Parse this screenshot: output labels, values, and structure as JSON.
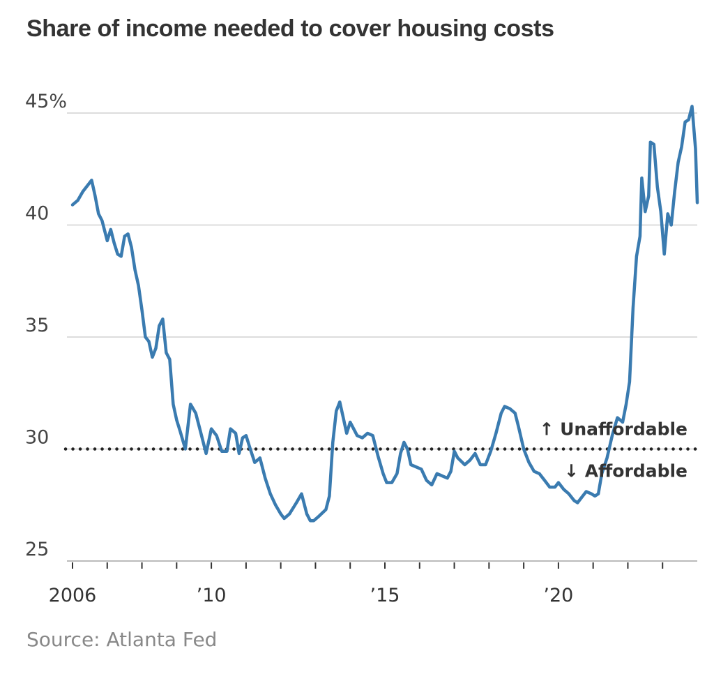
{
  "chart_data": {
    "type": "line",
    "title": "Share of income needed to cover housing costs",
    "source": "Source: Atlanta Fed",
    "xlabel": "",
    "ylabel": "",
    "ylim": [
      25,
      45
    ],
    "xlim": [
      2006,
      2024
    ],
    "y_ticks": [
      {
        "value": 45,
        "label": "45%"
      },
      {
        "value": 40,
        "label": "40"
      },
      {
        "value": 35,
        "label": "35"
      },
      {
        "value": 30,
        "label": "30"
      },
      {
        "value": 25,
        "label": "25"
      }
    ],
    "x_ticks": [
      {
        "value": 2006,
        "label": "2006"
      },
      {
        "value": 2010,
        "label": "’10"
      },
      {
        "value": 2015,
        "label": "’15"
      },
      {
        "value": 2020,
        "label": "’20"
      }
    ],
    "x_minor_ticks": [
      2006,
      2007,
      2008,
      2009,
      2010,
      2011,
      2012,
      2013,
      2014,
      2015,
      2016,
      2017,
      2018,
      2019,
      2020,
      2021,
      2022,
      2023
    ],
    "grid": true,
    "line_color": "#3a7bb0",
    "threshold": {
      "value": 30,
      "label_above": "↑ Unaffordable",
      "label_below": "↓ Affordable"
    },
    "series": [
      {
        "values": [
          [
            2006.0,
            40.9
          ],
          [
            2006.15,
            41.1
          ],
          [
            2006.3,
            41.5
          ],
          [
            2006.55,
            42.0
          ],
          [
            2006.65,
            41.3
          ],
          [
            2006.75,
            40.5
          ],
          [
            2006.85,
            40.2
          ],
          [
            2006.95,
            39.6
          ],
          [
            2007.0,
            39.3
          ],
          [
            2007.1,
            39.8
          ],
          [
            2007.2,
            39.2
          ],
          [
            2007.3,
            38.7
          ],
          [
            2007.4,
            38.6
          ],
          [
            2007.5,
            39.5
          ],
          [
            2007.6,
            39.6
          ],
          [
            2007.7,
            39.0
          ],
          [
            2007.8,
            38.0
          ],
          [
            2007.9,
            37.3
          ],
          [
            2008.0,
            36.2
          ],
          [
            2008.1,
            35.0
          ],
          [
            2008.2,
            34.8
          ],
          [
            2008.3,
            34.1
          ],
          [
            2008.4,
            34.5
          ],
          [
            2008.5,
            35.5
          ],
          [
            2008.6,
            35.8
          ],
          [
            2008.7,
            34.3
          ],
          [
            2008.8,
            34.0
          ],
          [
            2008.9,
            32.0
          ],
          [
            2009.0,
            31.3
          ],
          [
            2009.1,
            30.8
          ],
          [
            2009.25,
            30.0
          ],
          [
            2009.4,
            32.0
          ],
          [
            2009.55,
            31.6
          ],
          [
            2009.7,
            30.7
          ],
          [
            2009.85,
            29.8
          ],
          [
            2010.0,
            30.9
          ],
          [
            2010.15,
            30.6
          ],
          [
            2010.3,
            29.9
          ],
          [
            2010.45,
            29.9
          ],
          [
            2010.55,
            30.9
          ],
          [
            2010.7,
            30.7
          ],
          [
            2010.8,
            29.8
          ],
          [
            2010.9,
            30.5
          ],
          [
            2011.0,
            30.6
          ],
          [
            2011.1,
            30.1
          ],
          [
            2011.25,
            29.4
          ],
          [
            2011.4,
            29.6
          ],
          [
            2011.55,
            28.7
          ],
          [
            2011.7,
            28.0
          ],
          [
            2011.85,
            27.5
          ],
          [
            2012.0,
            27.1
          ],
          [
            2012.1,
            26.9
          ],
          [
            2012.25,
            27.1
          ],
          [
            2012.45,
            27.6
          ],
          [
            2012.6,
            28.0
          ],
          [
            2012.75,
            27.1
          ],
          [
            2012.85,
            26.8
          ],
          [
            2012.95,
            26.8
          ],
          [
            2013.1,
            27.0
          ],
          [
            2013.3,
            27.3
          ],
          [
            2013.4,
            27.9
          ],
          [
            2013.5,
            30.3
          ],
          [
            2013.6,
            31.7
          ],
          [
            2013.7,
            32.1
          ],
          [
            2013.8,
            31.4
          ],
          [
            2013.9,
            30.7
          ],
          [
            2014.0,
            31.2
          ],
          [
            2014.1,
            30.9
          ],
          [
            2014.2,
            30.6
          ],
          [
            2014.35,
            30.5
          ],
          [
            2014.5,
            30.7
          ],
          [
            2014.65,
            30.6
          ],
          [
            2014.8,
            29.7
          ],
          [
            2014.95,
            28.9
          ],
          [
            2015.05,
            28.5
          ],
          [
            2015.2,
            28.5
          ],
          [
            2015.35,
            28.9
          ],
          [
            2015.45,
            29.8
          ],
          [
            2015.55,
            30.3
          ],
          [
            2015.65,
            30.0
          ],
          [
            2015.75,
            29.3
          ],
          [
            2015.9,
            29.2
          ],
          [
            2016.05,
            29.1
          ],
          [
            2016.2,
            28.6
          ],
          [
            2016.35,
            28.4
          ],
          [
            2016.5,
            28.9
          ],
          [
            2016.65,
            28.8
          ],
          [
            2016.8,
            28.7
          ],
          [
            2016.9,
            29.0
          ],
          [
            2017.0,
            29.9
          ],
          [
            2017.1,
            29.6
          ],
          [
            2017.3,
            29.3
          ],
          [
            2017.45,
            29.5
          ],
          [
            2017.6,
            29.8
          ],
          [
            2017.75,
            29.3
          ],
          [
            2017.9,
            29.3
          ],
          [
            2018.05,
            29.9
          ],
          [
            2018.2,
            30.7
          ],
          [
            2018.35,
            31.6
          ],
          [
            2018.45,
            31.9
          ],
          [
            2018.6,
            31.8
          ],
          [
            2018.75,
            31.6
          ],
          [
            2018.85,
            31.0
          ],
          [
            2019.0,
            30.0
          ],
          [
            2019.15,
            29.4
          ],
          [
            2019.3,
            29.0
          ],
          [
            2019.45,
            28.9
          ],
          [
            2019.6,
            28.6
          ],
          [
            2019.75,
            28.3
          ],
          [
            2019.9,
            28.3
          ],
          [
            2020.0,
            28.5
          ],
          [
            2020.15,
            28.2
          ],
          [
            2020.3,
            28.0
          ],
          [
            2020.45,
            27.7
          ],
          [
            2020.55,
            27.6
          ],
          [
            2020.65,
            27.8
          ],
          [
            2020.8,
            28.1
          ],
          [
            2020.95,
            28.0
          ],
          [
            2021.05,
            27.9
          ],
          [
            2021.15,
            28.0
          ],
          [
            2021.25,
            28.9
          ],
          [
            2021.4,
            29.6
          ],
          [
            2021.55,
            30.6
          ],
          [
            2021.7,
            31.4
          ],
          [
            2021.85,
            31.2
          ],
          [
            2021.95,
            32.0
          ],
          [
            2022.05,
            33.0
          ],
          [
            2022.15,
            36.3
          ],
          [
            2022.25,
            38.6
          ],
          [
            2022.35,
            39.5
          ],
          [
            2022.4,
            42.1
          ],
          [
            2022.5,
            40.6
          ],
          [
            2022.6,
            41.3
          ],
          [
            2022.65,
            43.7
          ],
          [
            2022.75,
            43.6
          ],
          [
            2022.85,
            41.7
          ],
          [
            2022.95,
            40.6
          ],
          [
            2023.05,
            38.7
          ],
          [
            2023.15,
            40.5
          ],
          [
            2023.25,
            40.0
          ],
          [
            2023.35,
            41.5
          ],
          [
            2023.45,
            42.8
          ],
          [
            2023.55,
            43.5
          ],
          [
            2023.65,
            44.6
          ],
          [
            2023.75,
            44.7
          ],
          [
            2023.85,
            45.3
          ],
          [
            2023.95,
            43.4
          ],
          [
            2024.0,
            41.0
          ]
        ]
      }
    ]
  }
}
